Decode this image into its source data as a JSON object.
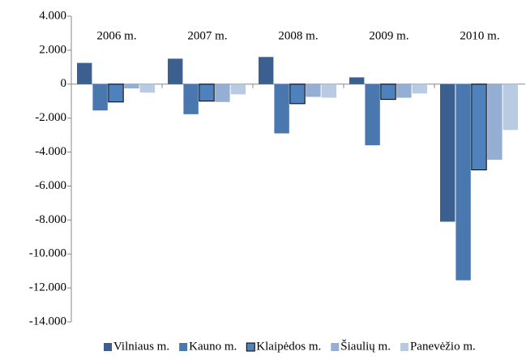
{
  "chart_data": {
    "type": "bar",
    "categories": [
      "2006 m.",
      "2007 m.",
      "2008 m.",
      "2009 m.",
      "2010 m."
    ],
    "series": [
      {
        "name": "Vilniaus m.",
        "color": "#3b5f8e",
        "values": [
          1250,
          1500,
          1600,
          400,
          -8100
        ]
      },
      {
        "name": "Kauno m.",
        "color": "#4a77ae",
        "values": [
          -1550,
          -1770,
          -2900,
          -3600,
          -11550
        ]
      },
      {
        "name": "Klaipėdos m.",
        "color": "#4f81bd",
        "edgecolor": "#000000",
        "values": [
          -1050,
          -1000,
          -1150,
          -900,
          -5050
        ]
      },
      {
        "name": "Šiaulių m.",
        "color": "#95afd4",
        "values": [
          -250,
          -1050,
          -750,
          -800,
          -4450
        ]
      },
      {
        "name": "Panevėžio m.",
        "color": "#b9cae3",
        "values": [
          -500,
          -600,
          -800,
          -550,
          -2700
        ]
      }
    ],
    "ylim": [
      -14000,
      4000
    ],
    "yticks": [
      {
        "value": -14000,
        "label": "-14.000"
      },
      {
        "value": -12000,
        "label": "-12.000"
      },
      {
        "value": -10000,
        "label": "-10.000"
      },
      {
        "value": -8000,
        "label": "-8.000"
      },
      {
        "value": -6000,
        "label": "-6.000"
      },
      {
        "value": -4000,
        "label": "-4.000"
      },
      {
        "value": -2000,
        "label": "-2.000"
      },
      0,
      {
        "value": 2000,
        "label": "2.000"
      },
      {
        "value": 4000,
        "label": "4.000"
      }
    ],
    "grid": false,
    "legend": "bottom"
  }
}
